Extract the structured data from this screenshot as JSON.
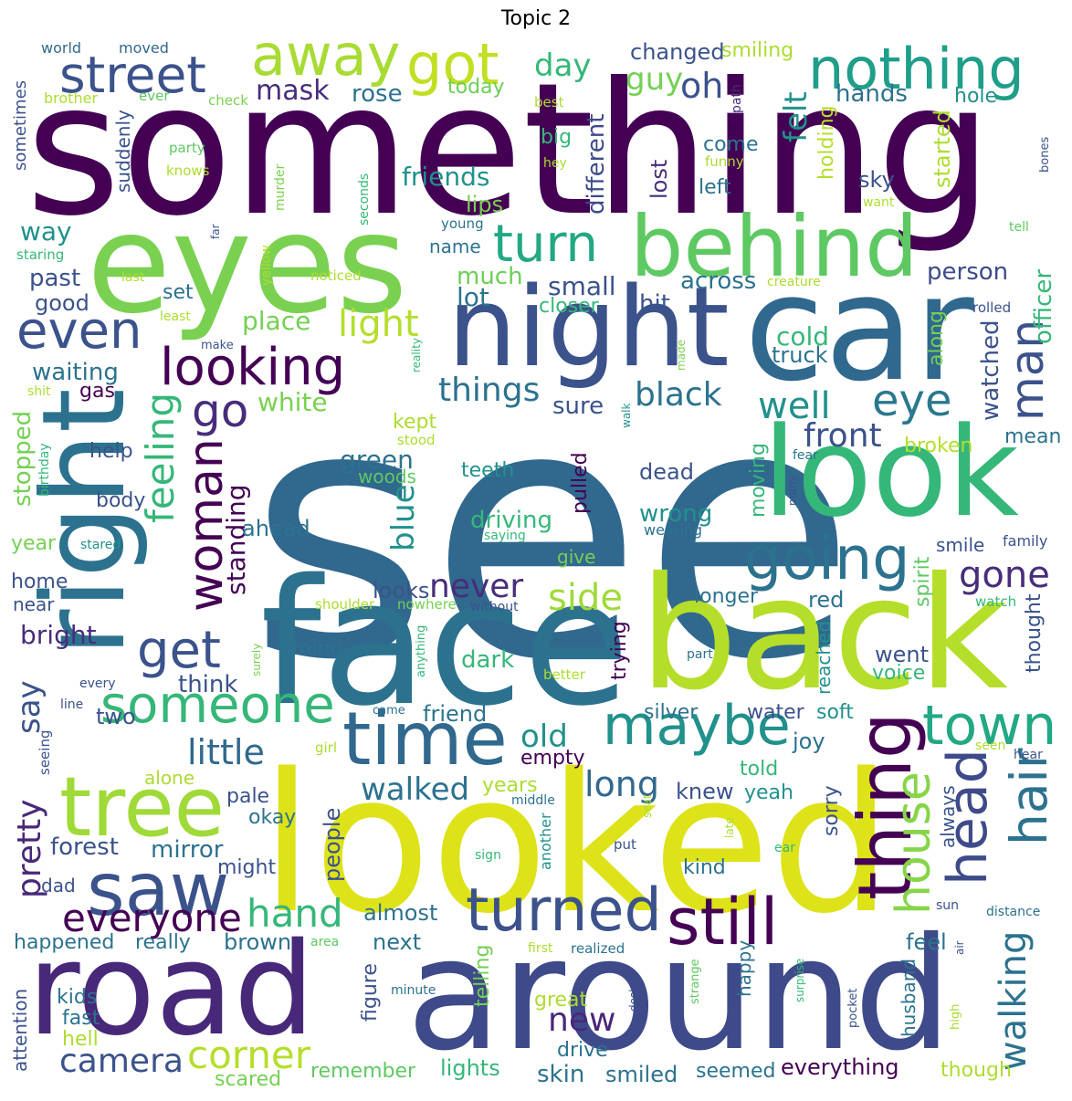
{
  "title": "Topic 2",
  "palette": {
    "dark_purple": "#440154",
    "indigo": "#472d7b",
    "blue": "#3b528b",
    "steel": "#2c728e",
    "teal": "#21918c",
    "sea": "#28ae80",
    "green": "#5ec962",
    "lime": "#addc30",
    "yellow": "#fde725"
  },
  "words": [
    {
      "text": "something",
      "color": "#440154"
    },
    {
      "text": "see",
      "color": "#31688e"
    },
    {
      "text": "looked",
      "color": "#dde318"
    },
    {
      "text": "face",
      "color": "#2c728e"
    },
    {
      "text": "back",
      "color": "#b5de2b"
    },
    {
      "text": "eyes",
      "color": "#7ad151"
    },
    {
      "text": "car",
      "color": "#31688e"
    },
    {
      "text": "night",
      "color": "#3b528b"
    },
    {
      "text": "look",
      "color": "#35b779"
    },
    {
      "text": "road",
      "color": "#482878"
    },
    {
      "text": "around",
      "color": "#3e4a89"
    },
    {
      "text": "right",
      "color": "#2c728e"
    },
    {
      "text": "behind",
      "color": "#5ec962"
    },
    {
      "text": "thing",
      "color": "#440154"
    },
    {
      "text": "tree",
      "color": "#a0da39"
    },
    {
      "text": "time",
      "color": "#31688e"
    },
    {
      "text": "saw",
      "color": "#3b528b"
    },
    {
      "text": "turned",
      "color": "#3b528b"
    },
    {
      "text": "still",
      "color": "#440154"
    },
    {
      "text": "head",
      "color": "#3e4a89"
    },
    {
      "text": "hair",
      "color": "#2c728e"
    },
    {
      "text": "house",
      "color": "#86d549"
    },
    {
      "text": "maybe",
      "color": "#21918c"
    },
    {
      "text": "someone",
      "color": "#35b779"
    },
    {
      "text": "going",
      "color": "#2c728e"
    },
    {
      "text": "town",
      "color": "#22a884"
    },
    {
      "text": "woman",
      "color": "#440154"
    },
    {
      "text": "nothing",
      "color": "#1f9e89"
    },
    {
      "text": "got",
      "color": "#c2df23"
    },
    {
      "text": "away",
      "color": "#a8db34"
    },
    {
      "text": "street",
      "color": "#3b528b"
    },
    {
      "text": "looking",
      "color": "#440154"
    },
    {
      "text": "even",
      "color": "#3b528b"
    },
    {
      "text": "turn",
      "color": "#22a884"
    },
    {
      "text": "man",
      "color": "#3b528b"
    },
    {
      "text": "eye",
      "color": "#2a788e"
    },
    {
      "text": "get",
      "color": "#3b528b"
    },
    {
      "text": "go",
      "color": "#472d7b"
    },
    {
      "text": "feeling",
      "color": "#35b779"
    },
    {
      "text": "everyone",
      "color": "#440154"
    },
    {
      "text": "hand",
      "color": "#35b779"
    },
    {
      "text": "corner",
      "color": "#b5de2b"
    },
    {
      "text": "camera",
      "color": "#3b528b"
    },
    {
      "text": "walking",
      "color": "#2c728e"
    },
    {
      "text": "felt",
      "color": "#21918c"
    },
    {
      "text": "oh",
      "color": "#3b528b"
    },
    {
      "text": "day",
      "color": "#35b779"
    },
    {
      "text": "guy",
      "color": "#75d054"
    },
    {
      "text": "mask",
      "color": "#472d7b"
    },
    {
      "text": "rose",
      "color": "#2c728e"
    },
    {
      "text": "light",
      "color": "#b5de2b"
    },
    {
      "text": "things",
      "color": "#2c728e"
    },
    {
      "text": "black",
      "color": "#2c728e"
    },
    {
      "text": "well",
      "color": "#21918c"
    },
    {
      "text": "front",
      "color": "#3b528b"
    },
    {
      "text": "little",
      "color": "#31688e"
    },
    {
      "text": "say",
      "color": "#3b528b"
    },
    {
      "text": "pretty",
      "color": "#482878"
    },
    {
      "text": "blue",
      "color": "#21918c"
    },
    {
      "text": "never",
      "color": "#472d7b"
    },
    {
      "text": "side",
      "color": "#a0da39"
    },
    {
      "text": "gone",
      "color": "#472d7b"
    },
    {
      "text": "long",
      "color": "#31688e"
    },
    {
      "text": "walked",
      "color": "#2c728e"
    },
    {
      "text": "old",
      "color": "#21918c"
    },
    {
      "text": "new",
      "color": "#482878"
    },
    {
      "text": "standing",
      "color": "#440154"
    },
    {
      "text": "changed",
      "color": "#3b528b"
    },
    {
      "text": "smiling",
      "color": "#addc30"
    },
    {
      "text": "hands",
      "color": "#2c728e"
    },
    {
      "text": "hole",
      "color": "#21918c"
    },
    {
      "text": "today",
      "color": "#6ece58"
    },
    {
      "text": "friends",
      "color": "#21918c"
    },
    {
      "text": "different",
      "color": "#3e4a89"
    },
    {
      "text": "big",
      "color": "#35b779"
    },
    {
      "text": "come",
      "color": "#2c728e"
    },
    {
      "text": "left",
      "color": "#2c728e"
    },
    {
      "text": "lost",
      "color": "#472d7b"
    },
    {
      "text": "holding",
      "color": "#b5de2b"
    },
    {
      "text": "started",
      "color": "#addc30"
    },
    {
      "text": "sky",
      "color": "#3b528b"
    },
    {
      "text": "lips",
      "color": "#7ad151"
    },
    {
      "text": "name",
      "color": "#2c728e"
    },
    {
      "text": "much",
      "color": "#6ece58"
    },
    {
      "text": "lot",
      "color": "#2c728e"
    },
    {
      "text": "small",
      "color": "#3b528b"
    },
    {
      "text": "across",
      "color": "#2c728e"
    },
    {
      "text": "closer",
      "color": "#35b779"
    },
    {
      "text": "hit",
      "color": "#3b528b"
    },
    {
      "text": "person",
      "color": "#3e4a89"
    },
    {
      "text": "officer",
      "color": "#35b779"
    },
    {
      "text": "cold",
      "color": "#35b779"
    },
    {
      "text": "truck",
      "color": "#2c728e"
    },
    {
      "text": "watched",
      "color": "#3b528b"
    },
    {
      "text": "along",
      "color": "#75d054"
    },
    {
      "text": "place",
      "color": "#75d054"
    },
    {
      "text": "white",
      "color": "#7ad151"
    },
    {
      "text": "sure",
      "color": "#3b528b"
    },
    {
      "text": "way",
      "color": "#21918c"
    },
    {
      "text": "past",
      "color": "#3b528b"
    },
    {
      "text": "good",
      "color": "#3b528b"
    },
    {
      "text": "set",
      "color": "#2c728e"
    },
    {
      "text": "waiting",
      "color": "#2c728e"
    },
    {
      "text": "gas",
      "color": "#440154"
    },
    {
      "text": "kept",
      "color": "#addc30"
    },
    {
      "text": "green",
      "color": "#2c728e"
    },
    {
      "text": "woods",
      "color": "#5ec962"
    },
    {
      "text": "teeth",
      "color": "#21918c"
    },
    {
      "text": "pulled",
      "color": "#440154"
    },
    {
      "text": "dead",
      "color": "#3b528b"
    },
    {
      "text": "broken",
      "color": "#b5de2b"
    },
    {
      "text": "mean",
      "color": "#2c728e"
    },
    {
      "text": "moving",
      "color": "#35b779"
    },
    {
      "text": "driving",
      "color": "#35b779"
    },
    {
      "text": "wrong",
      "color": "#21918c"
    },
    {
      "text": "wearing",
      "color": "#2c728e"
    },
    {
      "text": "help",
      "color": "#3b528b"
    },
    {
      "text": "body",
      "color": "#3b528b"
    },
    {
      "text": "stopped",
      "color": "#75d054"
    },
    {
      "text": "ahead",
      "color": "#2c728e"
    },
    {
      "text": "year",
      "color": "#75d054"
    },
    {
      "text": "home",
      "color": "#3b528b"
    },
    {
      "text": "near",
      "color": "#3b528b"
    },
    {
      "text": "bright",
      "color": "#472d7b"
    },
    {
      "text": "think",
      "color": "#3b528b"
    },
    {
      "text": "two",
      "color": "#3b528b"
    },
    {
      "text": "friend",
      "color": "#2c728e"
    },
    {
      "text": "mind",
      "color": "#2c728e"
    },
    {
      "text": "dark",
      "color": "#35b779"
    },
    {
      "text": "trying",
      "color": "#440154"
    },
    {
      "text": "silver",
      "color": "#2c728e"
    },
    {
      "text": "empty",
      "color": "#440154"
    },
    {
      "text": "water",
      "color": "#3b528b"
    },
    {
      "text": "soft",
      "color": "#21918c"
    },
    {
      "text": "joy",
      "color": "#2c728e"
    },
    {
      "text": "told",
      "color": "#35b779"
    },
    {
      "text": "reached",
      "color": "#21918c"
    },
    {
      "text": "went",
      "color": "#3b528b"
    },
    {
      "text": "voice",
      "color": "#35b779"
    },
    {
      "text": "spirit",
      "color": "#5ec962"
    },
    {
      "text": "thought",
      "color": "#3b528b"
    },
    {
      "text": "smile",
      "color": "#3b528b"
    },
    {
      "text": "family",
      "color": "#3b528b"
    },
    {
      "text": "red",
      "color": "#2c728e"
    },
    {
      "text": "longer",
      "color": "#2c728e"
    },
    {
      "text": "looks",
      "color": "#3b528b"
    },
    {
      "text": "give",
      "color": "#75d054"
    },
    {
      "text": "knew",
      "color": "#3b528b"
    },
    {
      "text": "yeah",
      "color": "#21918c"
    },
    {
      "text": "sorry",
      "color": "#3b528b"
    },
    {
      "text": "always",
      "color": "#3b528b"
    },
    {
      "text": "people",
      "color": "#3b528b"
    },
    {
      "text": "years",
      "color": "#addc30"
    },
    {
      "text": "pale",
      "color": "#3b528b"
    },
    {
      "text": "okay",
      "color": "#2c728e"
    },
    {
      "text": "forest",
      "color": "#3b528b"
    },
    {
      "text": "mirror",
      "color": "#2c728e"
    },
    {
      "text": "might",
      "color": "#3b528b"
    },
    {
      "text": "dad",
      "color": "#3b528b"
    },
    {
      "text": "alone",
      "color": "#addc30"
    },
    {
      "text": "almost",
      "color": "#2c728e"
    },
    {
      "text": "next",
      "color": "#2c728e"
    },
    {
      "text": "happened",
      "color": "#2c728e"
    },
    {
      "text": "really",
      "color": "#2c728e"
    },
    {
      "text": "brown",
      "color": "#2c728e"
    },
    {
      "text": "kind",
      "color": "#2c728e"
    },
    {
      "text": "feel",
      "color": "#2c728e"
    },
    {
      "text": "kids",
      "color": "#2c728e"
    },
    {
      "text": "fast",
      "color": "#2c728e"
    },
    {
      "text": "hell",
      "color": "#addc30"
    },
    {
      "text": "attention",
      "color": "#3b528b"
    },
    {
      "text": "figure",
      "color": "#3b528b"
    },
    {
      "text": "telling",
      "color": "#75d054"
    },
    {
      "text": "great",
      "color": "#addc30"
    },
    {
      "text": "drive",
      "color": "#2c728e"
    },
    {
      "text": "skin",
      "color": "#2c728e"
    },
    {
      "text": "smiled",
      "color": "#2c728e"
    },
    {
      "text": "seemed",
      "color": "#2c728e"
    },
    {
      "text": "everything",
      "color": "#440154"
    },
    {
      "text": "though",
      "color": "#addc30"
    },
    {
      "text": "lights",
      "color": "#35b779"
    },
    {
      "text": "remember",
      "color": "#5ec962"
    },
    {
      "text": "scared",
      "color": "#75d054"
    },
    {
      "text": "happy",
      "color": "#2c728e"
    },
    {
      "text": "husband",
      "color": "#2c728e"
    },
    {
      "text": "world",
      "color": "#31688e"
    },
    {
      "text": "moved",
      "color": "#31688e"
    },
    {
      "text": "brother",
      "color": "#addc30"
    },
    {
      "text": "ever",
      "color": "#5ec962"
    },
    {
      "text": "check",
      "color": "#7ad151"
    },
    {
      "text": "best",
      "color": "#addc30"
    },
    {
      "text": "path",
      "color": "#472d7b"
    },
    {
      "text": "sometimes",
      "color": "#3b528b"
    },
    {
      "text": "suddenly",
      "color": "#3b528b"
    },
    {
      "text": "party",
      "color": "#5ec962"
    },
    {
      "text": "knows",
      "color": "#addc30"
    },
    {
      "text": "murder",
      "color": "#7ad151"
    },
    {
      "text": "seconds",
      "color": "#35b779"
    },
    {
      "text": "hey",
      "color": "#addc30"
    },
    {
      "text": "funny",
      "color": "#addc30"
    },
    {
      "text": "want",
      "color": "#addc30"
    },
    {
      "text": "bones",
      "color": "#3b528b"
    },
    {
      "text": "young",
      "color": "#2c728e"
    },
    {
      "text": "tell",
      "color": "#5ec962"
    },
    {
      "text": "staring",
      "color": "#35b779"
    },
    {
      "text": "far",
      "color": "#3b528b"
    },
    {
      "text": "yellow",
      "color": "#addc30"
    },
    {
      "text": "last",
      "color": "#addc30"
    },
    {
      "text": "noticed",
      "color": "#addc30"
    },
    {
      "text": "least",
      "color": "#addc30"
    },
    {
      "text": "creature",
      "color": "#addc30"
    },
    {
      "text": "rolled",
      "color": "#3b528b"
    },
    {
      "text": "make",
      "color": "#3b528b"
    },
    {
      "text": "made",
      "color": "#7ad151"
    },
    {
      "text": "shit",
      "color": "#addc30"
    },
    {
      "text": "reality",
      "color": "#35b779"
    },
    {
      "text": "walk",
      "color": "#21918c"
    },
    {
      "text": "stood",
      "color": "#addc30"
    },
    {
      "text": "fear",
      "color": "#2c728e"
    },
    {
      "text": "many",
      "color": "#3b528b"
    },
    {
      "text": "birthday",
      "color": "#35b779"
    },
    {
      "text": "stared",
      "color": "#21918c"
    },
    {
      "text": "saying",
      "color": "#35b779"
    },
    {
      "text": "shoulder",
      "color": "#addc30"
    },
    {
      "text": "nowhere",
      "color": "#75d054"
    },
    {
      "text": "without",
      "color": "#3b528b"
    },
    {
      "text": "watch",
      "color": "#35b779"
    },
    {
      "text": "part",
      "color": "#2c728e"
    },
    {
      "text": "every",
      "color": "#3b528b"
    },
    {
      "text": "surely",
      "color": "#7ad151"
    },
    {
      "text": "better",
      "color": "#addc30"
    },
    {
      "text": "line",
      "color": "#3b528b"
    },
    {
      "text": "anything",
      "color": "#35b779"
    },
    {
      "text": "came",
      "color": "#2c728e"
    },
    {
      "text": "seeing",
      "color": "#3b528b"
    },
    {
      "text": "girl",
      "color": "#addc30"
    },
    {
      "text": "seen",
      "color": "#addc30"
    },
    {
      "text": "hear",
      "color": "#3b528b"
    },
    {
      "text": "middle",
      "color": "#2c728e"
    },
    {
      "text": "seat",
      "color": "#addc30"
    },
    {
      "text": "late",
      "color": "#addc30"
    },
    {
      "text": "put",
      "color": "#3b528b"
    },
    {
      "text": "sign",
      "color": "#35b779"
    },
    {
      "text": "ear",
      "color": "#35b779"
    },
    {
      "text": "another",
      "color": "#21918c"
    },
    {
      "text": "sun",
      "color": "#3b528b"
    },
    {
      "text": "distance",
      "color": "#2c728e"
    },
    {
      "text": "area",
      "color": "#5ec962"
    },
    {
      "text": "first",
      "color": "#addc30"
    },
    {
      "text": "realized",
      "color": "#2c728e"
    },
    {
      "text": "air",
      "color": "#3b528b"
    },
    {
      "text": "strange",
      "color": "#5ec962"
    },
    {
      "text": "surprise",
      "color": "#35b779"
    },
    {
      "text": "minute",
      "color": "#2c728e"
    },
    {
      "text": "desk",
      "color": "#3b528b"
    },
    {
      "text": "pocket",
      "color": "#3b528b"
    },
    {
      "text": "high",
      "color": "#addc30"
    }
  ]
}
